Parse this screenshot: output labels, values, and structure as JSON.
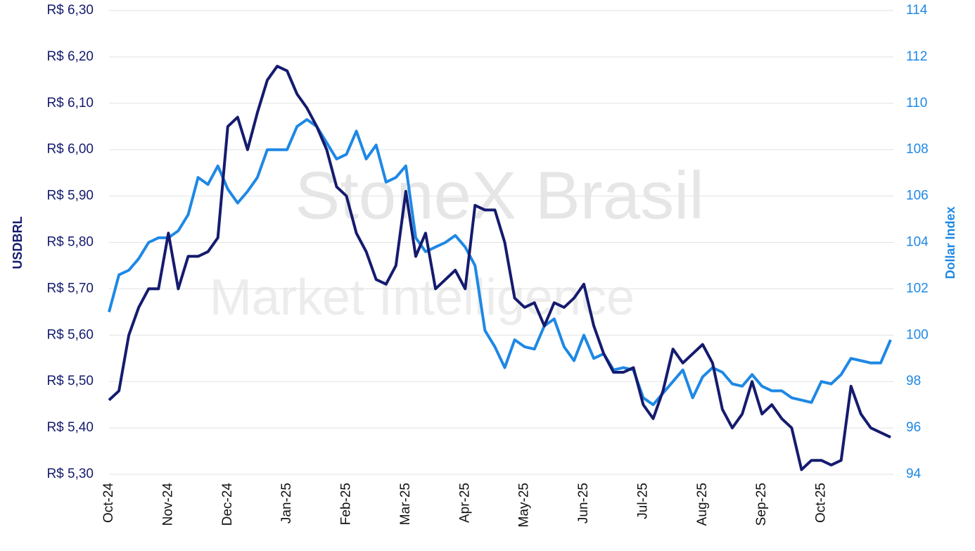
{
  "chart_data": {
    "type": "line",
    "watermark_title": "StoneX Brasil",
    "watermark_subtitle": "Market Intelligence",
    "ylabel": "USDBRL",
    "y2label": "Dollar Index",
    "categories": [
      "Oct-24",
      null,
      null,
      null,
      null,
      null,
      "Nov-24",
      null,
      null,
      null,
      null,
      null,
      "Dec-24",
      null,
      null,
      null,
      null,
      null,
      "Jan-25",
      null,
      null,
      null,
      null,
      null,
      "Feb-25",
      null,
      null,
      null,
      null,
      null,
      "Mar-25",
      null,
      null,
      null,
      null,
      null,
      "Apr-25",
      null,
      null,
      null,
      null,
      null,
      "May-25",
      null,
      null,
      null,
      null,
      null,
      "Jun-25",
      null,
      null,
      null,
      null,
      null,
      "Jul-25",
      null,
      null,
      null,
      null,
      null,
      "Aug-25",
      null,
      null,
      null,
      null,
      null,
      "Sep-25",
      null,
      null,
      null,
      null,
      null,
      "Oct-25",
      null,
      null,
      null,
      null,
      null,
      null,
      null
    ],
    "series": [
      {
        "color": "#151b6e",
        "values": [
          5.46,
          5.48,
          5.6,
          5.66,
          5.7,
          5.7,
          5.82,
          5.7,
          5.77,
          5.77,
          5.78,
          5.81,
          6.05,
          6.07,
          6.0,
          6.08,
          6.15,
          6.18,
          6.17,
          6.12,
          6.09,
          6.05,
          6.0,
          5.92,
          5.9,
          5.82,
          5.78,
          5.72,
          5.71,
          5.75,
          5.91,
          5.77,
          5.82,
          5.7,
          5.72,
          5.74,
          5.7,
          5.88,
          5.87,
          5.87,
          5.8,
          5.68,
          5.66,
          5.67,
          5.62,
          5.67,
          5.66,
          5.68,
          5.71,
          5.62,
          5.56,
          5.52,
          5.52,
          5.53,
          5.45,
          5.42,
          5.48,
          5.57,
          5.54,
          5.56,
          5.58,
          5.54,
          5.44,
          5.4,
          5.43,
          5.5,
          5.43,
          5.45,
          5.42,
          5.4,
          5.31,
          5.33,
          5.33,
          5.32,
          5.33,
          5.49,
          5.43,
          5.4,
          5.39,
          5.38
        ]
      },
      {
        "color": "#1e88e5",
        "axis": "y2",
        "values": [
          101,
          102.6,
          102.8,
          103.3,
          104,
          104.2,
          104.2,
          104.5,
          105.2,
          106.8,
          106.5,
          107.3,
          106.3,
          105.7,
          106.2,
          106.8,
          108,
          108,
          108,
          109,
          109.3,
          109,
          108.3,
          107.6,
          107.8,
          108.8,
          107.6,
          108.2,
          106.6,
          106.8,
          107.3,
          104.2,
          103.6,
          103.8,
          104,
          104.3,
          103.8,
          103,
          100.2,
          99.5,
          98.6,
          99.8,
          99.5,
          99.4,
          100.4,
          100.7,
          99.5,
          98.9,
          100,
          99,
          99.2,
          98.5,
          98.6,
          98.5,
          97.3,
          97,
          97.5,
          98,
          98.5,
          97.3,
          98.2,
          98.6,
          98.4,
          97.9,
          97.8,
          98.3,
          97.8,
          97.6,
          97.6,
          97.3,
          97.2,
          97.1,
          98,
          97.9,
          98.3,
          99,
          98.9,
          98.8,
          98.8,
          99.8
        ]
      }
    ],
    "ylim": [
      5.3,
      6.3
    ],
    "yticks": [
      {
        "value": 5.3,
        "label": "R$ 5,30"
      },
      {
        "value": 5.4,
        "label": "R$ 5,40"
      },
      {
        "value": 5.5,
        "label": "R$ 5,50"
      },
      {
        "value": 5.6,
        "label": "R$ 5,60"
      },
      {
        "value": 5.7,
        "label": "R$ 5,70"
      },
      {
        "value": 5.8,
        "label": "R$ 5,80"
      },
      {
        "value": 5.9,
        "label": "R$ 5,90"
      },
      {
        "value": 6.0,
        "label": "R$ 6,00"
      },
      {
        "value": 6.1,
        "label": "R$ 6,10"
      },
      {
        "value": 6.2,
        "label": "R$ 6,20"
      },
      {
        "value": 6.3,
        "label": "R$ 6,30"
      }
    ],
    "y2lim": [
      94,
      114
    ],
    "y2ticks": [
      94,
      96,
      98,
      100,
      102,
      104,
      106,
      108,
      110,
      112,
      114
    ],
    "grid": true
  }
}
